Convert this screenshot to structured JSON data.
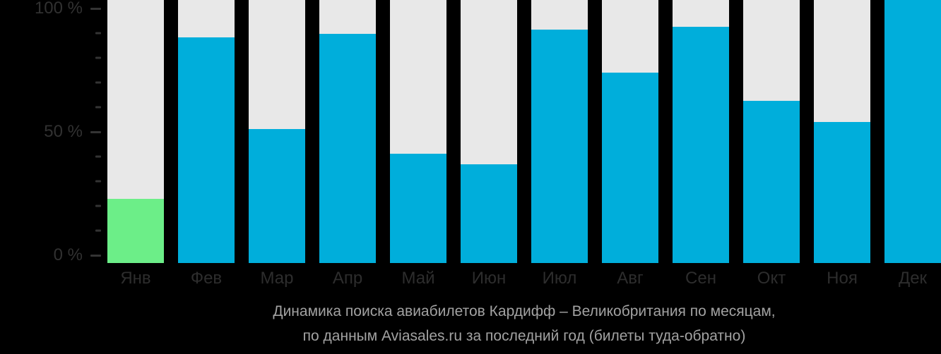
{
  "chart_data": {
    "type": "bar",
    "title": "Динамика поиска авиабилетов Кардифф – Великобритания по месяцам,",
    "subtitle": "по данным Aviasales.ru за последний год (билеты туда-обратно)",
    "categories": [
      "Янв",
      "Фев",
      "Мар",
      "Апр",
      "Май",
      "Июн",
      "Июл",
      "Авг",
      "Сен",
      "Окт",
      "Ноя",
      "Дек"
    ],
    "values": [
      23,
      88,
      51,
      90,
      41,
      37,
      92,
      74,
      93,
      63,
      54,
      100
    ],
    "bar_fill_pct_of_column": [
      24.4,
      85.8,
      50.9,
      87.1,
      41.6,
      37.5,
      88.7,
      72.4,
      89.8,
      61.7,
      53.6,
      100
    ],
    "bar_colors": [
      "#6cee88",
      "#00aedb",
      "#00aedb",
      "#00aedb",
      "#00aedb",
      "#00aedb",
      "#00aedb",
      "#00aedb",
      "#00aedb",
      "#00aedb",
      "#00aedb",
      "#00aedb"
    ],
    "highlighted_month": "Янв",
    "highlight_color": "#6cee88",
    "default_bar_color": "#00aedb",
    "background_bar_color": "#e8e8e8",
    "xlabel": "",
    "ylabel": "",
    "ylim": [
      0,
      100
    ],
    "y_axis": {
      "major_tick_labels": [
        "100 %",
        "50 %",
        "0 %"
      ],
      "minor_ticks_between_majors": 4
    },
    "grid": false,
    "legend": false
  },
  "colors": {
    "page_background": "#000000",
    "axis_text": "#313131",
    "month_label_text": "#2d2d2d",
    "tick_mark": "#343434",
    "caption_text": "#a2a2a2"
  }
}
